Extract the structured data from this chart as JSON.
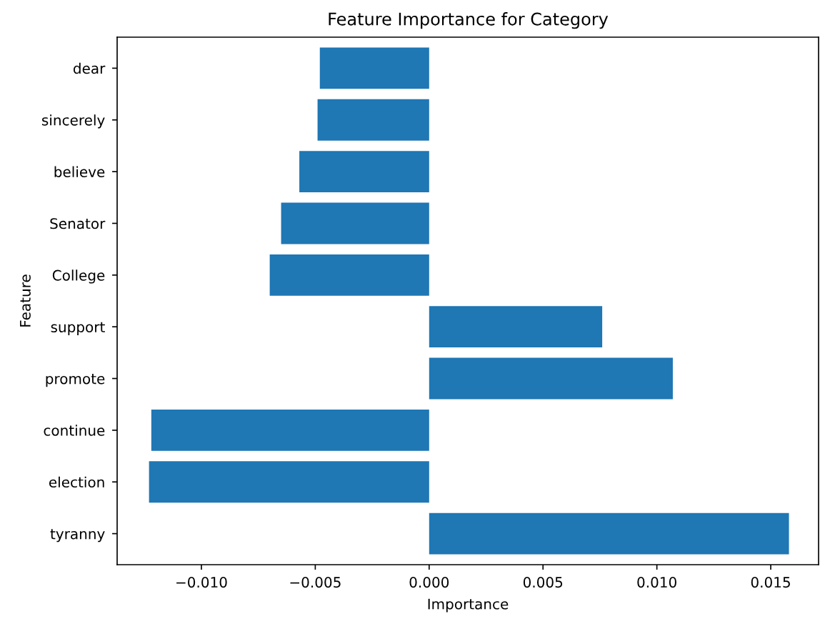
{
  "chart_data": {
    "type": "bar",
    "orientation": "horizontal",
    "title": "Feature Importance for Category",
    "xlabel": "Importance",
    "ylabel": "Feature",
    "categories": [
      "dear",
      "sincerely",
      "believe",
      "Senator",
      "College",
      "support",
      "promote",
      "continue",
      "election",
      "tyranny"
    ],
    "values": [
      -0.0048,
      -0.0049,
      -0.0057,
      -0.0065,
      -0.007,
      0.0076,
      0.0107,
      -0.0122,
      -0.0123,
      0.0158
    ],
    "color": "#1f77b4",
    "xlim": [
      -0.0137,
      0.0171
    ],
    "xticks": [
      {
        "value": -0.01,
        "label": "−0.010"
      },
      {
        "value": -0.005,
        "label": "−0.005"
      },
      {
        "value": 0,
        "label": "0.000"
      },
      {
        "value": 0.005,
        "label": "0.005"
      },
      {
        "value": 0.01,
        "label": "0.010"
      },
      {
        "value": 0.015,
        "label": "0.015"
      }
    ],
    "grid": false
  }
}
